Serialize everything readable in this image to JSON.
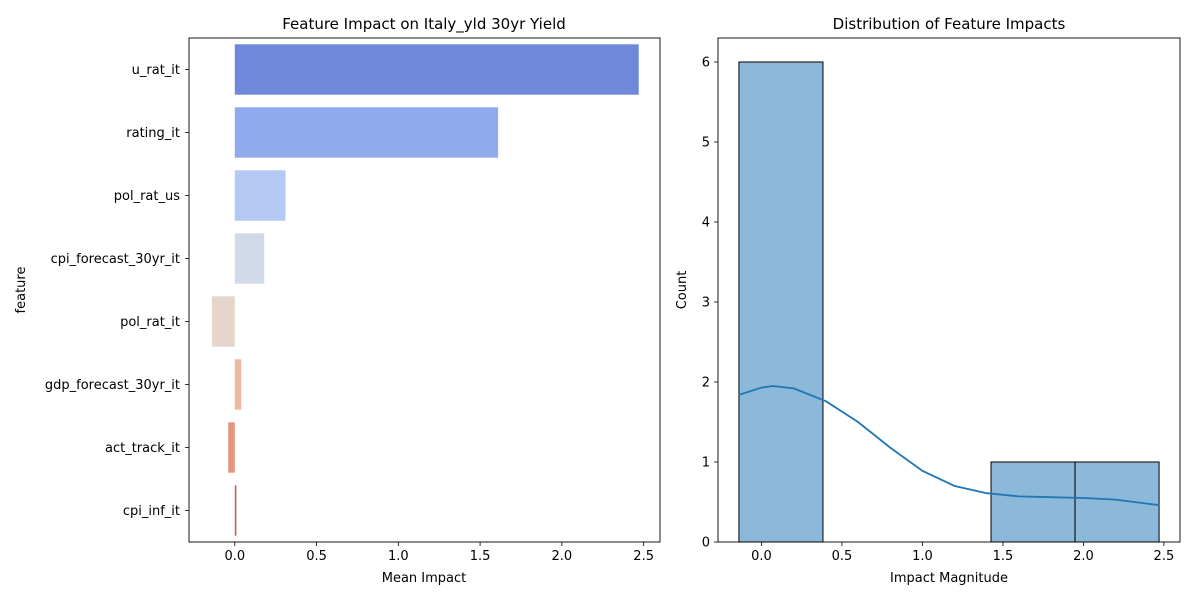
{
  "chart_data": [
    {
      "type": "bar",
      "orientation": "horizontal",
      "title": "Feature Impact on Italy_yld 30yr Yield",
      "xlabel": "Mean Impact",
      "ylabel": "feature",
      "categories": [
        "u_rat_it",
        "rating_it",
        "pol_rat_us",
        "cpi_forecast_30yr_it",
        "pol_rat_it",
        "gdp_forecast_30yr_it",
        "act_track_it",
        "cpi_inf_it"
      ],
      "values": [
        2.47,
        1.61,
        0.31,
        0.18,
        -0.14,
        0.04,
        -0.04,
        0.01
      ],
      "colors": [
        "#6f88d9",
        "#8fabee",
        "#b4c8f4",
        "#d1dae8",
        "#e6d5cd",
        "#f0b8a0",
        "#e4957d",
        "#cc5f52"
      ],
      "xlim": [
        -0.28,
        2.6
      ],
      "xticks": [
        0.0,
        0.5,
        1.0,
        1.5,
        2.0,
        2.5
      ],
      "xtick_labels": [
        "0.0",
        "0.5",
        "1.0",
        "1.5",
        "2.0",
        "2.5"
      ],
      "grid": false
    },
    {
      "type": "histogram",
      "title": "Distribution of Feature Impacts",
      "xlabel": "Impact Magnitude",
      "ylabel": "Count",
      "bin_edges": [
        -0.14,
        0.382,
        0.904,
        1.426,
        1.948,
        2.47
      ],
      "counts": [
        6,
        0,
        0,
        1,
        1
      ],
      "bar_color": "#8cb8d9",
      "kde_color": "#1f77b4",
      "kde_curve": {
        "x": [
          -0.14,
          0.0,
          0.07,
          0.2,
          0.4,
          0.6,
          0.8,
          1.0,
          1.2,
          1.4,
          1.6,
          1.8,
          2.0,
          2.2,
          2.47
        ],
        "y": [
          1.84,
          1.93,
          1.95,
          1.92,
          1.76,
          1.5,
          1.18,
          0.89,
          0.7,
          0.61,
          0.57,
          0.56,
          0.55,
          0.53,
          0.46
        ]
      },
      "xlim": [
        -0.27,
        2.6
      ],
      "ylim": [
        0,
        6.3
      ],
      "xticks": [
        0.0,
        0.5,
        1.0,
        1.5,
        2.0,
        2.5
      ],
      "xtick_labels": [
        "0.0",
        "0.5",
        "1.0",
        "1.5",
        "2.0",
        "2.5"
      ],
      "yticks": [
        0,
        1,
        2,
        3,
        4,
        5,
        6
      ],
      "ytick_labels": [
        "0",
        "1",
        "2",
        "3",
        "4",
        "5",
        "6"
      ],
      "grid": false
    }
  ]
}
